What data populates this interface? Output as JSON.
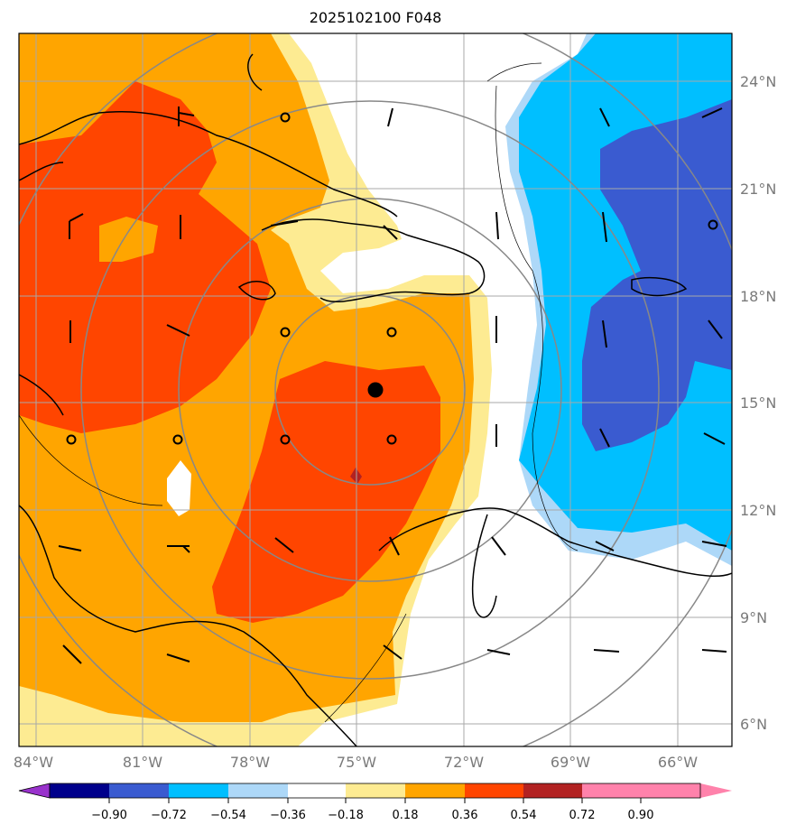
{
  "title": "2025102100 F048",
  "map": {
    "lon_labels": [
      "84°W",
      "81°W",
      "78°W",
      "75°W",
      "72°W",
      "69°W",
      "66°W"
    ],
    "lat_labels": [
      "24°N",
      "21°N",
      "18°N",
      "15°N",
      "12°N",
      "9°N",
      "6°N"
    ],
    "center_marker": "black-dot",
    "field_colors": {
      "white_band": "#ffffff",
      "pos_018_036": "#fdeb92",
      "pos_036_054": "#ffa500",
      "pos_054_072": "#ff4500",
      "pos_072_090": "#b22222",
      "neg_018_036": "#add8f8",
      "neg_036_054": "#00bfff",
      "neg_054_072": "#3a5bd0"
    }
  },
  "colorbar": {
    "ticks": [
      "−0.90",
      "−0.72",
      "−0.54",
      "−0.36",
      "−0.18",
      "0.18",
      "0.36",
      "0.54",
      "0.72",
      "0.90"
    ],
    "colors": [
      "#9932cc",
      "#00008b",
      "#3a5bd0",
      "#00bfff",
      "#add8f8",
      "#ffffff",
      "#fdeb92",
      "#ffa500",
      "#ff4500",
      "#b22222",
      "#ff82ab"
    ]
  }
}
